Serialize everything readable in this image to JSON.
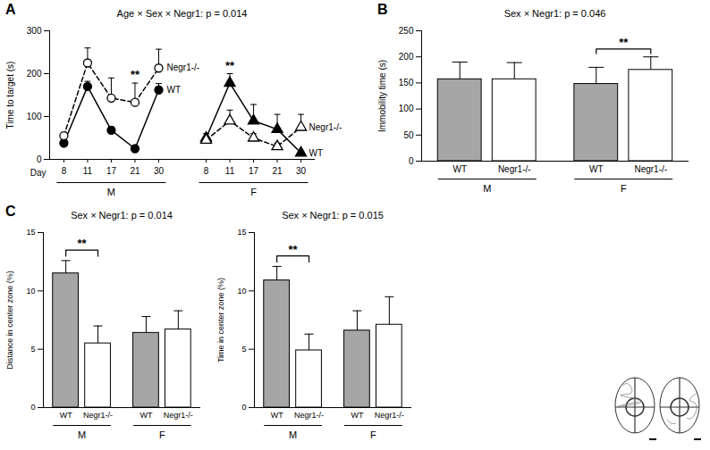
{
  "chart_data": [
    {
      "panel": "A",
      "type": "line",
      "title": "Age × Sex × Negr1: p = 0.014",
      "y_label": "Time to target (s)",
      "x_label": "Day",
      "groups": [
        "M",
        "F"
      ],
      "categories": [
        "8",
        "11",
        "17",
        "21",
        "30"
      ],
      "ylim": [
        0,
        300
      ],
      "yticks": [
        0,
        100,
        200,
        300
      ],
      "series": [
        {
          "name": "WT",
          "group": "M",
          "color": "#000000",
          "marker": "circle",
          "line_style": "solid",
          "values": [
            38,
            170,
            68,
            25,
            162
          ],
          "errors": [
            6,
            12,
            8,
            5,
            15
          ]
        },
        {
          "name": "Negr1-/-",
          "group": "M",
          "color": "#000000",
          "marker": "open_circle",
          "line_style": "dashed",
          "values": [
            55,
            225,
            143,
            133,
            213
          ],
          "errors": [
            8,
            35,
            47,
            45,
            44
          ]
        },
        {
          "name": "WT",
          "group": "F",
          "color": "#000000",
          "marker": "triangle",
          "line_style": "solid",
          "values": [
            50,
            178,
            90,
            70,
            15
          ],
          "errors": [
            10,
            22,
            38,
            35,
            4
          ]
        },
        {
          "name": "Negr1-/-",
          "group": "F",
          "color": "#000000",
          "marker": "open_triangle",
          "line_style": "dashed",
          "values": [
            45,
            90,
            50,
            30,
            75
          ],
          "errors": [
            8,
            25,
            10,
            8,
            30
          ]
        }
      ],
      "annotations": [
        {
          "text": "**",
          "group": "M",
          "category": "21"
        },
        {
          "text": "**",
          "group": "F",
          "category": "11"
        }
      ]
    },
    {
      "panel": "B",
      "type": "bar",
      "title": "Sex × Negr1: p = 0.046",
      "y_label": "Immobility time (s)",
      "categories": [
        "WT",
        "Negr1-/-",
        "WT",
        "Negr1-/-"
      ],
      "groups": [
        "M",
        "M",
        "F",
        "F"
      ],
      "values": [
        157,
        157,
        148,
        175
      ],
      "errors": [
        33,
        32,
        32,
        25
      ],
      "colors": [
        "#a6a6a6",
        "#ffffff",
        "#a6a6a6",
        "#ffffff"
      ],
      "ylim": [
        0,
        250
      ],
      "yticks": [
        0,
        50,
        100,
        150,
        200,
        250
      ],
      "annotations": [
        {
          "text": "**",
          "between": [
            2,
            3
          ]
        }
      ]
    },
    {
      "panel": "C",
      "type": "bar",
      "title": "Sex × Negr1: p = 0.014",
      "y_label": "Distance in center zone (%)",
      "categories": [
        "WT",
        "Negr1-/-",
        "WT",
        "Negr1-/-"
      ],
      "groups": [
        "M",
        "M",
        "F",
        "F"
      ],
      "values": [
        11.5,
        5.5,
        6.4,
        6.7
      ],
      "errors": [
        1.1,
        1.5,
        1.4,
        1.6
      ],
      "colors": [
        "#a6a6a6",
        "#ffffff",
        "#a6a6a6",
        "#ffffff"
      ],
      "ylim": [
        0,
        15
      ],
      "yticks": [
        0,
        5,
        10,
        15
      ],
      "annotations": [
        {
          "text": "**",
          "between": [
            0,
            1
          ]
        }
      ]
    },
    {
      "type": "bar",
      "title": "Sex × Negr1: p = 0.015",
      "y_label": "Time in center zone (%)",
      "categories": [
        "WT",
        "Negr1-/-",
        "WT",
        "Negr1-/-"
      ],
      "groups": [
        "M",
        "M",
        "F",
        "F"
      ],
      "values": [
        10.9,
        4.9,
        6.6,
        7.1
      ],
      "errors": [
        1.2,
        1.4,
        1.7,
        2.4
      ],
      "colors": [
        "#a6a6a6",
        "#ffffff",
        "#a6a6a6",
        "#ffffff"
      ],
      "ylim": [
        0,
        15
      ],
      "yticks": [
        0,
        5,
        10,
        15
      ],
      "annotations": [
        {
          "text": "**",
          "between": [
            0,
            1
          ]
        }
      ]
    }
  ]
}
